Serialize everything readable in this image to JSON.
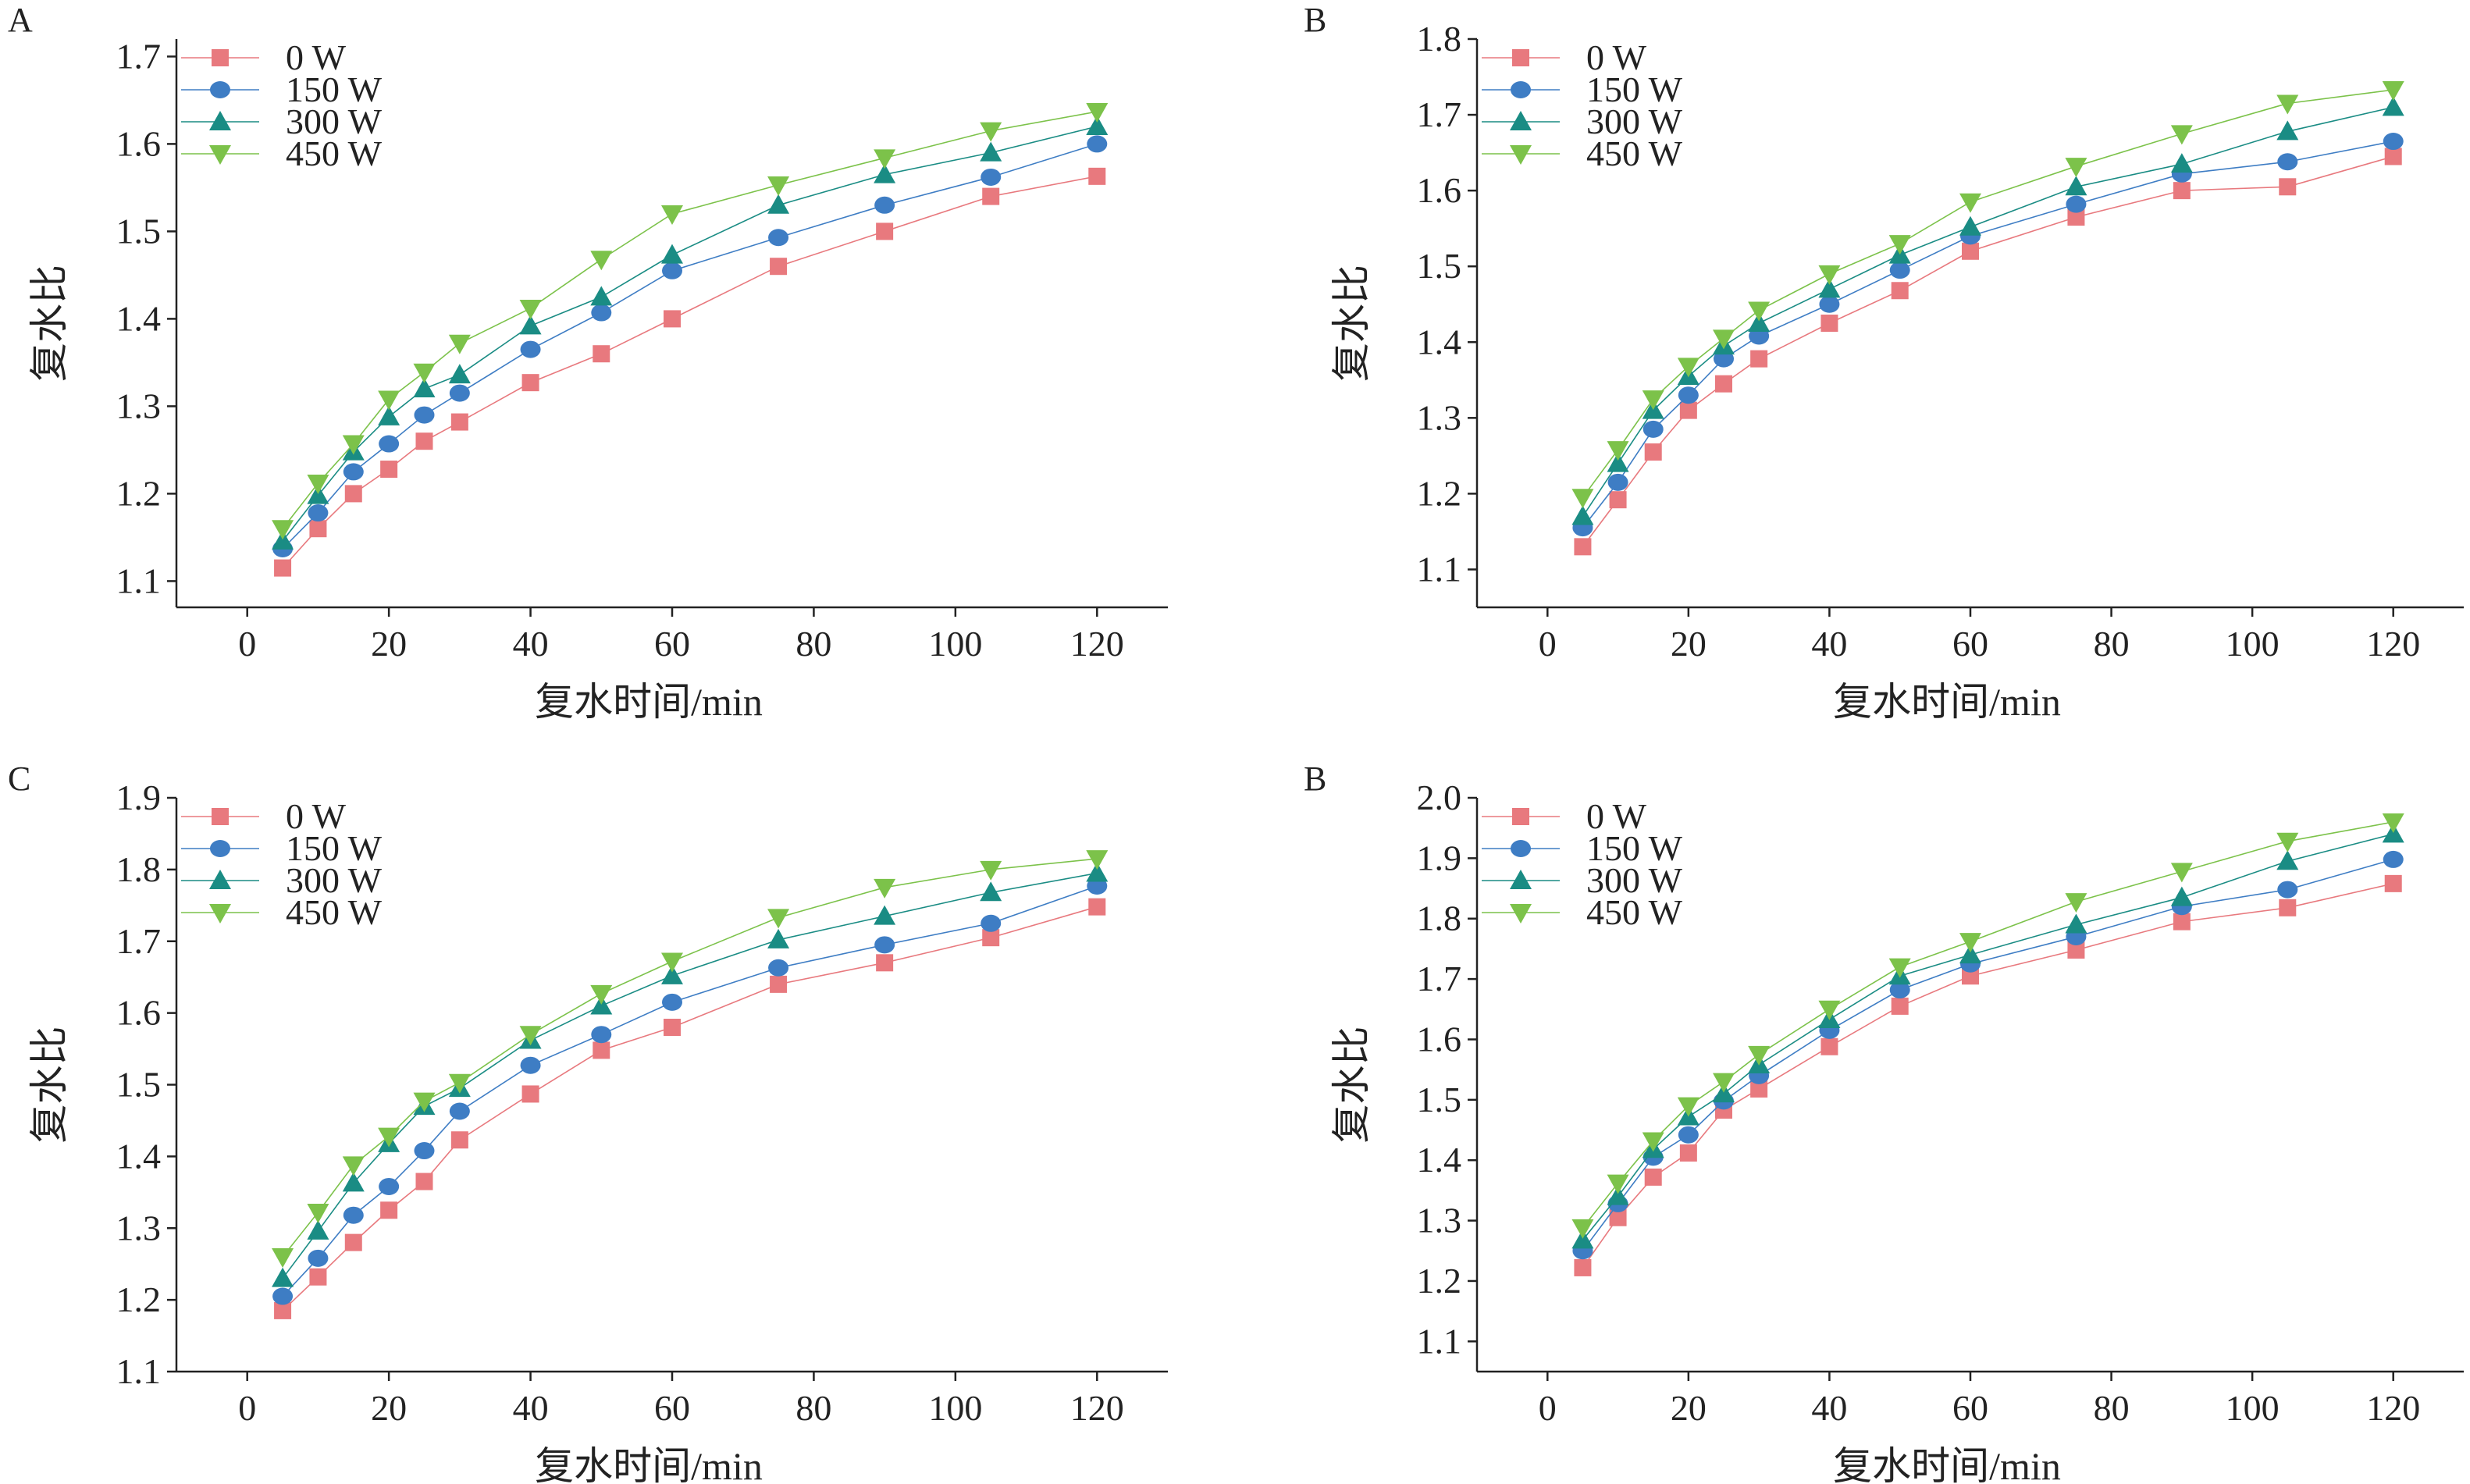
{
  "colors": {
    "s0": "#E8797E",
    "s150": "#3E7DC4",
    "s300": "#1A8C84",
    "s450": "#7CC24A",
    "axis": "#222222"
  },
  "chart_data": [
    {
      "type": "line",
      "panel": "A",
      "xlabel": "复水时间/min",
      "ylabel": "复水比",
      "xlim": [
        -10,
        130
      ],
      "ylim": [
        1.07,
        1.72
      ],
      "xticks": [
        0,
        20,
        40,
        60,
        80,
        100,
        120
      ],
      "yticks": [
        1.1,
        1.2,
        1.3,
        1.4,
        1.5,
        1.6,
        1.7
      ],
      "grid": false,
      "legend": "top-left",
      "x": [
        5,
        10,
        15,
        20,
        25,
        30,
        40,
        50,
        60,
        75,
        90,
        105,
        120
      ],
      "series": [
        {
          "name": "0 W",
          "marker": "square",
          "values": [
            1.115,
            1.16,
            1.2,
            1.228,
            1.26,
            1.282,
            1.327,
            1.36,
            1.4,
            1.46,
            1.5,
            1.54,
            1.563
          ]
        },
        {
          "name": "150 W",
          "marker": "circle",
          "values": [
            1.137,
            1.178,
            1.225,
            1.257,
            1.29,
            1.315,
            1.365,
            1.407,
            1.455,
            1.493,
            1.53,
            1.562,
            1.6
          ]
        },
        {
          "name": "300 W",
          "marker": "triangle-up",
          "values": [
            1.146,
            1.198,
            1.248,
            1.288,
            1.32,
            1.336,
            1.392,
            1.425,
            1.473,
            1.53,
            1.565,
            1.59,
            1.62
          ]
        },
        {
          "name": "450 W",
          "marker": "triangle-down",
          "values": [
            1.16,
            1.212,
            1.257,
            1.308,
            1.339,
            1.372,
            1.412,
            1.468,
            1.52,
            1.553,
            1.584,
            1.615,
            1.637
          ]
        }
      ]
    },
    {
      "type": "line",
      "panel": "B",
      "xlabel": "复水时间/min",
      "ylabel": "复水比",
      "xlim": [
        -10,
        130
      ],
      "ylim": [
        1.05,
        1.8
      ],
      "xticks": [
        0,
        20,
        40,
        60,
        80,
        100,
        120
      ],
      "yticks": [
        1.1,
        1.2,
        1.3,
        1.4,
        1.5,
        1.6,
        1.7,
        1.8
      ],
      "grid": false,
      "legend": "top-left",
      "x": [
        5,
        10,
        15,
        20,
        25,
        30,
        40,
        50,
        60,
        75,
        90,
        105,
        120
      ],
      "series": [
        {
          "name": "0 W",
          "marker": "square",
          "values": [
            1.13,
            1.192,
            1.255,
            1.31,
            1.345,
            1.378,
            1.425,
            1.468,
            1.52,
            1.565,
            1.6,
            1.605,
            1.645
          ]
        },
        {
          "name": "150 W",
          "marker": "circle",
          "values": [
            1.155,
            1.215,
            1.285,
            1.33,
            1.378,
            1.408,
            1.45,
            1.495,
            1.54,
            1.582,
            1.622,
            1.638,
            1.665
          ]
        },
        {
          "name": "300 W",
          "marker": "triangle-up",
          "values": [
            1.17,
            1.24,
            1.31,
            1.355,
            1.395,
            1.425,
            1.47,
            1.515,
            1.552,
            1.605,
            1.635,
            1.678,
            1.71
          ]
        },
        {
          "name": "450 W",
          "marker": "triangle-down",
          "values": [
            1.195,
            1.258,
            1.325,
            1.368,
            1.405,
            1.442,
            1.49,
            1.53,
            1.585,
            1.632,
            1.675,
            1.715,
            1.733
          ]
        }
      ]
    },
    {
      "type": "line",
      "panel": "C",
      "xlabel": "复水时间/min",
      "ylabel": "复水比",
      "xlim": [
        -10,
        130
      ],
      "ylim": [
        1.1,
        1.9
      ],
      "xticks": [
        0,
        20,
        40,
        60,
        80,
        100,
        120
      ],
      "yticks": [
        1.1,
        1.2,
        1.3,
        1.4,
        1.5,
        1.6,
        1.7,
        1.8,
        1.9
      ],
      "grid": false,
      "legend": "top-left",
      "x": [
        5,
        10,
        15,
        20,
        25,
        30,
        40,
        50,
        60,
        75,
        90,
        105,
        120
      ],
      "series": [
        {
          "name": "0 W",
          "marker": "square",
          "values": [
            1.185,
            1.232,
            1.28,
            1.325,
            1.365,
            1.423,
            1.487,
            1.548,
            1.58,
            1.64,
            1.67,
            1.705,
            1.748
          ]
        },
        {
          "name": "150 W",
          "marker": "circle",
          "values": [
            1.205,
            1.258,
            1.318,
            1.358,
            1.408,
            1.463,
            1.527,
            1.57,
            1.615,
            1.663,
            1.695,
            1.725,
            1.777
          ]
        },
        {
          "name": "300 W",
          "marker": "triangle-up",
          "values": [
            1.23,
            1.296,
            1.363,
            1.418,
            1.47,
            1.495,
            1.562,
            1.61,
            1.652,
            1.702,
            1.735,
            1.768,
            1.795
          ]
        },
        {
          "name": "450 W",
          "marker": "triangle-down",
          "values": [
            1.26,
            1.322,
            1.388,
            1.428,
            1.477,
            1.503,
            1.57,
            1.627,
            1.672,
            1.733,
            1.775,
            1.8,
            1.815
          ]
        }
      ]
    },
    {
      "type": "line",
      "panel": "B",
      "xlabel": "复水时间/min",
      "ylabel": "复水比",
      "xlim": [
        -10,
        130
      ],
      "ylim": [
        1.05,
        2.0
      ],
      "xticks": [
        0,
        20,
        40,
        60,
        80,
        100,
        120
      ],
      "yticks": [
        1.1,
        1.2,
        1.3,
        1.4,
        1.5,
        1.6,
        1.7,
        1.8,
        1.9,
        2.0
      ],
      "grid": false,
      "legend": "top-left",
      "x": [
        5,
        10,
        15,
        20,
        25,
        30,
        40,
        50,
        60,
        75,
        90,
        105,
        120
      ],
      "series": [
        {
          "name": "0 W",
          "marker": "square",
          "values": [
            1.222,
            1.305,
            1.372,
            1.412,
            1.483,
            1.518,
            1.588,
            1.655,
            1.705,
            1.748,
            1.795,
            1.818,
            1.858
          ]
        },
        {
          "name": "150 W",
          "marker": "circle",
          "values": [
            1.25,
            1.328,
            1.405,
            1.442,
            1.498,
            1.54,
            1.615,
            1.682,
            1.725,
            1.77,
            1.82,
            1.848,
            1.898
          ]
        },
        {
          "name": "300 W",
          "marker": "triangle-up",
          "values": [
            1.268,
            1.34,
            1.418,
            1.472,
            1.51,
            1.558,
            1.633,
            1.705,
            1.74,
            1.79,
            1.835,
            1.895,
            1.94
          ]
        },
        {
          "name": "450 W",
          "marker": "triangle-down",
          "values": [
            1.288,
            1.362,
            1.432,
            1.49,
            1.53,
            1.575,
            1.65,
            1.72,
            1.762,
            1.828,
            1.878,
            1.928,
            1.96
          ]
        }
      ]
    }
  ]
}
